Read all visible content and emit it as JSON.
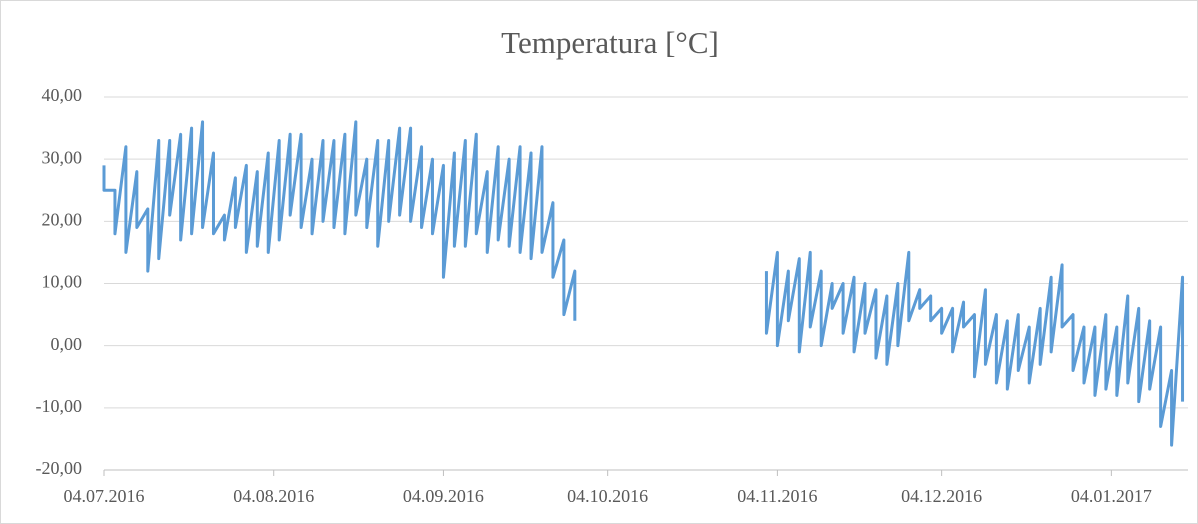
{
  "chart_data": {
    "type": "line",
    "title": "Temperatura [°C]",
    "x": [
      "2016-07-04",
      "2016-07-04",
      "2016-07-06",
      "2016-07-06",
      "2016-07-08",
      "2016-07-08",
      "2016-07-10",
      "2016-07-10",
      "2016-07-12",
      "2016-07-12",
      "2016-07-14",
      "2016-07-14",
      "2016-07-16",
      "2016-07-16",
      "2016-07-18",
      "2016-07-18",
      "2016-07-20",
      "2016-07-20",
      "2016-07-22",
      "2016-07-22",
      "2016-07-24",
      "2016-07-24",
      "2016-07-26",
      "2016-07-26",
      "2016-07-28",
      "2016-07-28",
      "2016-07-30",
      "2016-07-30",
      "2016-08-01",
      "2016-08-01",
      "2016-08-03",
      "2016-08-03",
      "2016-08-05",
      "2016-08-05",
      "2016-08-07",
      "2016-08-07",
      "2016-08-09",
      "2016-08-09",
      "2016-08-11",
      "2016-08-11",
      "2016-08-13",
      "2016-08-13",
      "2016-08-15",
      "2016-08-15",
      "2016-08-17",
      "2016-08-17",
      "2016-08-19",
      "2016-08-19",
      "2016-08-21",
      "2016-08-21",
      "2016-08-23",
      "2016-08-23",
      "2016-08-25",
      "2016-08-25",
      "2016-08-27",
      "2016-08-27",
      "2016-08-29",
      "2016-08-29",
      "2016-08-31",
      "2016-08-31",
      "2016-09-02",
      "2016-09-02",
      "2016-09-04",
      "2016-09-04",
      "2016-09-06",
      "2016-09-06",
      "2016-09-08",
      "2016-09-08",
      "2016-09-10",
      "2016-09-10",
      "2016-09-12",
      "2016-09-12",
      "2016-09-14",
      "2016-09-14",
      "2016-09-16",
      "2016-09-16",
      "2016-09-18",
      "2016-09-18",
      "2016-09-20",
      "2016-09-20",
      "2016-09-22",
      "2016-09-22",
      "2016-09-24",
      "2016-09-24",
      "2016-09-26",
      "2016-09-26",
      "2016-09-28",
      "2016-09-28",
      "2016-10-15",
      "2016-11-02",
      "2016-11-02",
      "2016-11-04",
      "2016-11-04",
      "2016-11-06",
      "2016-11-06",
      "2016-11-08",
      "2016-11-08",
      "2016-11-10",
      "2016-11-10",
      "2016-11-12",
      "2016-11-12",
      "2016-11-14",
      "2016-11-14",
      "2016-11-16",
      "2016-11-16",
      "2016-11-18",
      "2016-11-18",
      "2016-11-20",
      "2016-11-20",
      "2016-11-22",
      "2016-11-22",
      "2016-11-24",
      "2016-11-24",
      "2016-11-26",
      "2016-11-26",
      "2016-11-28",
      "2016-11-28",
      "2016-11-30",
      "2016-11-30",
      "2016-12-02",
      "2016-12-02",
      "2016-12-04",
      "2016-12-04",
      "2016-12-06",
      "2016-12-06",
      "2016-12-08",
      "2016-12-08",
      "2016-12-10",
      "2016-12-10",
      "2016-12-12",
      "2016-12-12",
      "2016-12-14",
      "2016-12-14",
      "2016-12-16",
      "2016-12-16",
      "2016-12-18",
      "2016-12-18",
      "2016-12-20",
      "2016-12-20",
      "2016-12-22",
      "2016-12-22",
      "2016-12-24",
      "2016-12-24",
      "2016-12-26",
      "2016-12-26",
      "2016-12-28",
      "2016-12-28",
      "2016-12-30",
      "2016-12-30",
      "2017-01-01",
      "2017-01-01",
      "2017-01-03",
      "2017-01-03",
      "2017-01-05",
      "2017-01-05",
      "2017-01-07",
      "2017-01-07",
      "2017-01-09",
      "2017-01-09",
      "2017-01-11",
      "2017-01-11",
      "2017-01-13",
      "2017-01-13",
      "2017-01-15",
      "2017-01-15",
      "2017-01-17",
      "2017-01-17"
    ],
    "series": [
      {
        "name": "Temperatura",
        "color": "#5b9bd5",
        "values": [
          29,
          25,
          25,
          18,
          32,
          15,
          28,
          19,
          22,
          12,
          33,
          14,
          33,
          21,
          34,
          17,
          35,
          18,
          36,
          19,
          31,
          18,
          21,
          17,
          27,
          19,
          29,
          15,
          28,
          16,
          31,
          15,
          33,
          17,
          34,
          21,
          34,
          19,
          30,
          18,
          33,
          20,
          33,
          19,
          34,
          18,
          36,
          21,
          30,
          19,
          33,
          16,
          33,
          20,
          35,
          21,
          35,
          20,
          32,
          19,
          30,
          18,
          29,
          11,
          31,
          16,
          33,
          16,
          34,
          18,
          28,
          15,
          32,
          17,
          30,
          16,
          32,
          15,
          31,
          14,
          32,
          15,
          23,
          11,
          17,
          5,
          12,
          4,
          null,
          12,
          2,
          15,
          0,
          12,
          4,
          14,
          -1,
          15,
          3,
          12,
          0,
          10,
          6,
          10,
          2,
          11,
          -1,
          10,
          2,
          9,
          -2,
          8,
          -3,
          10,
          0,
          15,
          4,
          9,
          6,
          8,
          4,
          6,
          2,
          6,
          -1,
          7,
          3,
          5,
          -5,
          9,
          -3,
          5,
          -6,
          4,
          -7,
          5,
          -4,
          3,
          -6,
          6,
          -3,
          11,
          -1,
          13,
          3,
          5,
          -4,
          3,
          -6,
          3,
          -8,
          5,
          -7,
          3,
          -8,
          8,
          -6,
          6,
          -9,
          4,
          -7,
          3,
          -13,
          -4,
          -16,
          11,
          -9
        ]
      }
    ],
    "xlim": [
      "2016-07-04",
      "2017-01-18"
    ],
    "xticks": [
      {
        "value": "2016-07-04",
        "label": "04.07.2016"
      },
      {
        "value": "2016-08-04",
        "label": "04.08.2016"
      },
      {
        "value": "2016-09-04",
        "label": "04.09.2016"
      },
      {
        "value": "2016-10-04",
        "label": "04.10.2016"
      },
      {
        "value": "2016-11-04",
        "label": "04.11.2016"
      },
      {
        "value": "2016-12-04",
        "label": "04.12.2016"
      },
      {
        "value": "2017-01-04",
        "label": "04.01.2017"
      }
    ],
    "ylim": [
      -20,
      40
    ],
    "yticks": [
      {
        "value": -20,
        "label": "-20,00"
      },
      {
        "value": -10,
        "label": "-10,00"
      },
      {
        "value": 0,
        "label": "0,00"
      },
      {
        "value": 10,
        "label": "10,00"
      },
      {
        "value": 20,
        "label": "20,00"
      },
      {
        "value": 30,
        "label": "30,00"
      },
      {
        "value": 40,
        "label": "40,00"
      }
    ],
    "grid": true
  }
}
